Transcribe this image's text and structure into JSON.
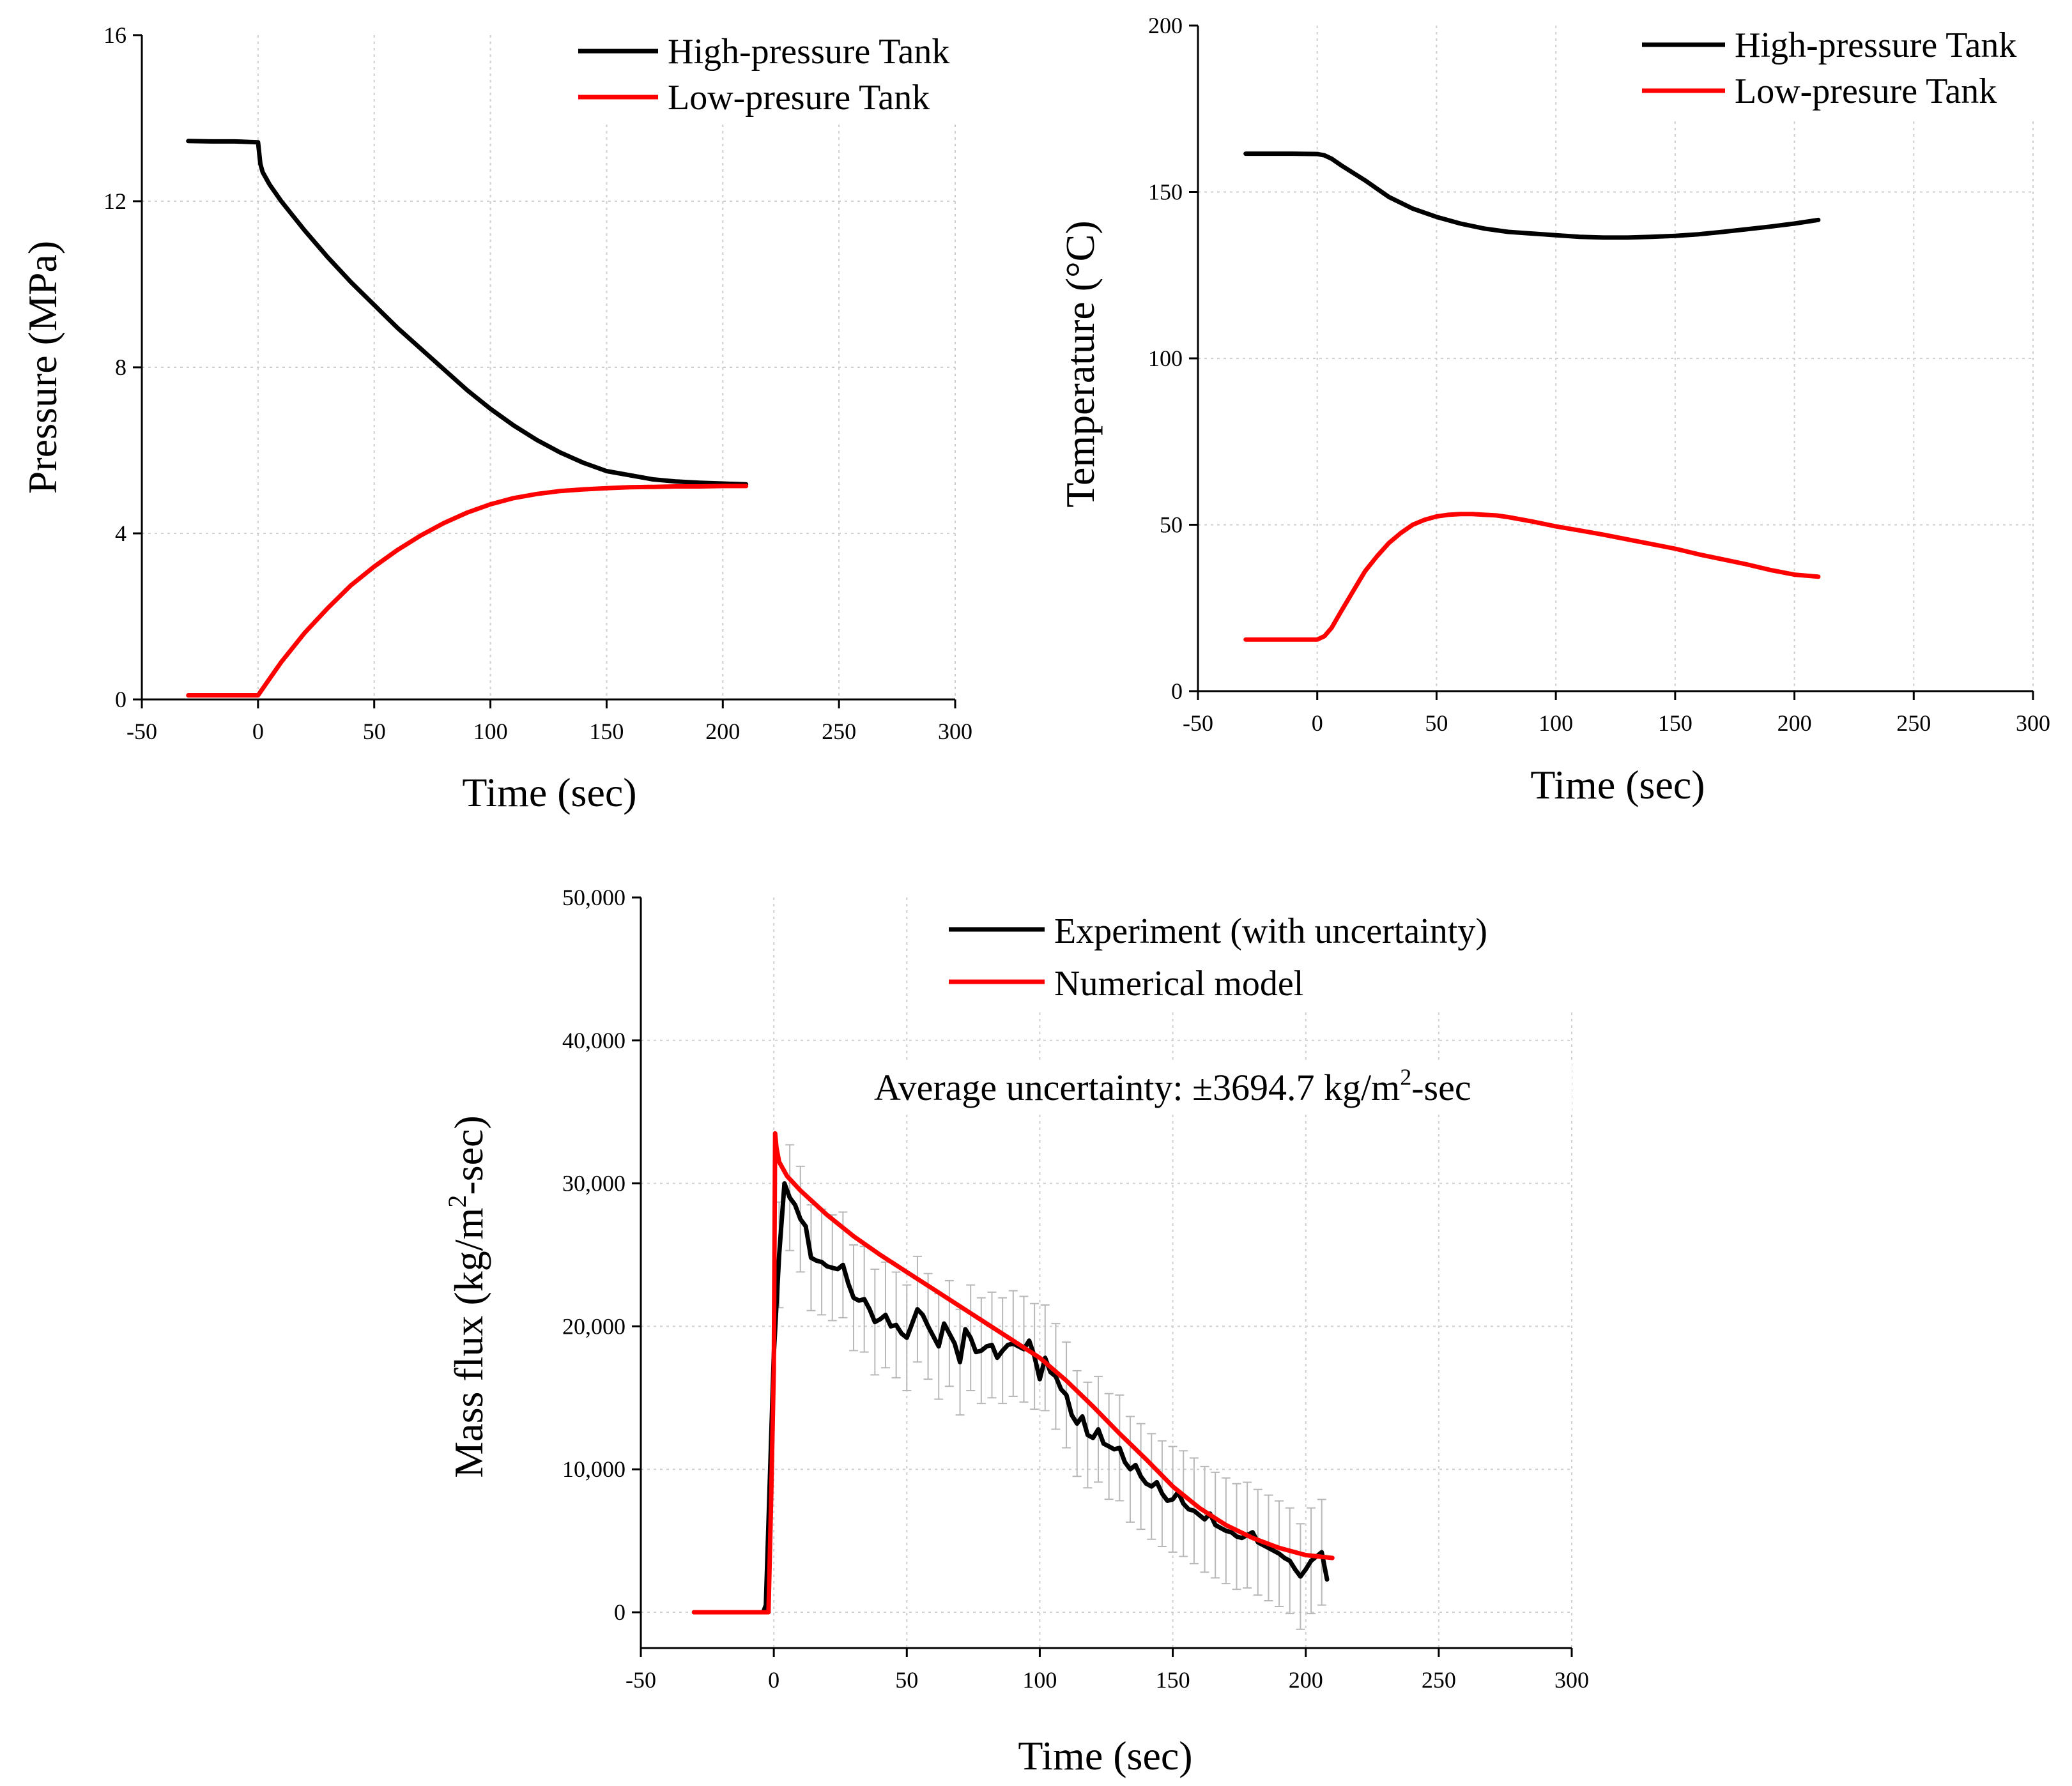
{
  "colors": {
    "high": "#000000",
    "low": "#ff0000",
    "errorbar": "#b8b8b8"
  },
  "chart_data": [
    {
      "id": "pressure",
      "type": "line",
      "xlabel": "Time (sec)",
      "ylabel": "Pressure (MPa)",
      "xlim": [
        -50,
        300
      ],
      "ylim": [
        0,
        16
      ],
      "xticks": [
        -50,
        0,
        50,
        100,
        150,
        200,
        250,
        300
      ],
      "xtick_labels": [
        "-50",
        "0",
        "50",
        "100",
        "150",
        "200",
        "250",
        "300"
      ],
      "yticks": [
        0,
        4,
        8,
        12,
        16
      ],
      "ytick_labels": [
        "0",
        "4",
        "8",
        "12",
        "16"
      ],
      "grid": true,
      "legend_position": "top-right",
      "series": [
        {
          "name": "High-pressure Tank",
          "color": "#000000",
          "x": [
            -30,
            -20,
            -10,
            0,
            1,
            2,
            5,
            10,
            20,
            30,
            40,
            50,
            60,
            70,
            80,
            90,
            100,
            110,
            120,
            130,
            140,
            150,
            160,
            170,
            180,
            190,
            200,
            210
          ],
          "y": [
            13.45,
            13.44,
            13.44,
            13.42,
            12.9,
            12.7,
            12.4,
            12.0,
            11.3,
            10.65,
            10.05,
            9.5,
            8.95,
            8.45,
            7.95,
            7.45,
            7.0,
            6.6,
            6.25,
            5.95,
            5.7,
            5.5,
            5.4,
            5.3,
            5.25,
            5.22,
            5.2,
            5.18
          ]
        },
        {
          "name": "Low-presure Tank",
          "color": "#ff0000",
          "x": [
            -30,
            -20,
            -10,
            0,
            5,
            10,
            20,
            30,
            40,
            50,
            60,
            70,
            80,
            90,
            100,
            110,
            120,
            130,
            140,
            150,
            160,
            170,
            180,
            190,
            200,
            210
          ],
          "y": [
            0.1,
            0.1,
            0.1,
            0.1,
            0.5,
            0.9,
            1.6,
            2.2,
            2.75,
            3.2,
            3.6,
            3.95,
            4.25,
            4.5,
            4.7,
            4.85,
            4.95,
            5.02,
            5.06,
            5.09,
            5.11,
            5.12,
            5.13,
            5.13,
            5.14,
            5.14
          ]
        }
      ]
    },
    {
      "id": "temperature",
      "type": "line",
      "xlabel": "Time (sec)",
      "ylabel": "Temperature (°C)",
      "xlim": [
        -50,
        300
      ],
      "ylim": [
        0,
        200
      ],
      "xticks": [
        -50,
        0,
        50,
        100,
        150,
        200,
        250,
        300
      ],
      "xtick_labels": [
        "-50",
        "0",
        "50",
        "100",
        "150",
        "200",
        "250",
        "300"
      ],
      "yticks": [
        0,
        50,
        100,
        150,
        200
      ],
      "ytick_labels": [
        "0",
        "50",
        "100",
        "150",
        "200"
      ],
      "grid": true,
      "legend_position": "top-right",
      "series": [
        {
          "name": "High-pressure Tank",
          "color": "#000000",
          "x": [
            -30,
            -20,
            -10,
            0,
            3,
            6,
            10,
            20,
            30,
            40,
            50,
            60,
            70,
            80,
            90,
            100,
            110,
            120,
            130,
            140,
            150,
            160,
            170,
            180,
            190,
            200,
            210
          ],
          "y": [
            161.5,
            161.5,
            161.5,
            161.4,
            161,
            160,
            158,
            153.5,
            148.5,
            145,
            142.5,
            140.5,
            139,
            138,
            137.5,
            137,
            136.5,
            136.3,
            136.3,
            136.5,
            136.8,
            137.3,
            138,
            138.8,
            139.6,
            140.5,
            141.6
          ]
        },
        {
          "name": "Low-presure Tank",
          "color": "#ff0000",
          "x": [
            -30,
            -20,
            -10,
            0,
            3,
            6,
            10,
            15,
            20,
            25,
            30,
            35,
            40,
            45,
            50,
            55,
            60,
            65,
            70,
            75,
            80,
            90,
            100,
            110,
            120,
            130,
            140,
            150,
            160,
            170,
            180,
            190,
            200,
            210
          ],
          "y": [
            15.5,
            15.5,
            15.5,
            15.5,
            16.5,
            19,
            24,
            30,
            36,
            40.5,
            44.5,
            47.5,
            50,
            51.5,
            52.5,
            53,
            53.2,
            53.2,
            53,
            52.8,
            52.3,
            51,
            49.5,
            48.3,
            47,
            45.6,
            44.2,
            42.8,
            41.1,
            39.6,
            38.1,
            36.4,
            35,
            34.4
          ]
        }
      ]
    },
    {
      "id": "massflux",
      "type": "line",
      "xlabel": "Time (sec)",
      "ylabel": "Mass flux (kg/m",
      "ylabel_superscript": "2",
      "ylabel_suffix": "-sec)",
      "xlim": [
        -50,
        300
      ],
      "ylim": [
        -2500,
        50000
      ],
      "xticks": [
        -50,
        0,
        50,
        100,
        150,
        200,
        250,
        300
      ],
      "xtick_labels": [
        "-50",
        "0",
        "50",
        "100",
        "150",
        "200",
        "250",
        "300"
      ],
      "yticks": [
        0,
        10000,
        20000,
        30000,
        40000,
        50000
      ],
      "ytick_labels": [
        "0",
        "10,000",
        "20,000",
        "30,000",
        "40,000",
        "50,000"
      ],
      "grid": true,
      "legend_position": "top-right",
      "annotation": {
        "text": "Average uncertainty: ±3694.7 kg/m",
        "superscript": "2",
        "suffix": "-sec"
      },
      "series": [
        {
          "name": "Experiment (with uncertainty)",
          "color": "#000000",
          "uncertainty": 3694.7,
          "x": [
            -30,
            -20,
            -10,
            -4,
            -3,
            0,
            2,
            4,
            6,
            8,
            10,
            12,
            14,
            16,
            18,
            20,
            22,
            24,
            26,
            28,
            30,
            32,
            34,
            36,
            38,
            40,
            42,
            44,
            46,
            48,
            50,
            52,
            54,
            56,
            58,
            60,
            62,
            64,
            66,
            68,
            70,
            72,
            74,
            76,
            78,
            80,
            82,
            84,
            86,
            88,
            90,
            92,
            94,
            96,
            98,
            100,
            102,
            104,
            106,
            108,
            110,
            112,
            114,
            116,
            118,
            120,
            122,
            124,
            126,
            128,
            130,
            132,
            134,
            136,
            138,
            140,
            142,
            144,
            146,
            148,
            150,
            152,
            154,
            156,
            158,
            160,
            162,
            164,
            166,
            168,
            170,
            172,
            174,
            176,
            178,
            180,
            182,
            184,
            186,
            188,
            190,
            192,
            194,
            196,
            198,
            200,
            202,
            204,
            206,
            208
          ],
          "y": [
            0,
            0,
            0,
            0,
            500,
            18000,
            25000,
            30000,
            29000,
            28500,
            27500,
            27000,
            24800,
            24600,
            24500,
            24200,
            24100,
            24000,
            24300,
            23000,
            22000,
            21800,
            21900,
            21200,
            20300,
            20500,
            20800,
            20000,
            20100,
            19500,
            19200,
            20200,
            21200,
            20800,
            20000,
            19300,
            18600,
            20200,
            19500,
            18800,
            17500,
            19800,
            19200,
            18200,
            18300,
            18600,
            18700,
            17800,
            18300,
            18700,
            18800,
            18600,
            18400,
            19000,
            17900,
            16300,
            17800,
            16800,
            16500,
            15600,
            15200,
            13800,
            13200,
            13700,
            12400,
            12200,
            12800,
            11800,
            11600,
            11400,
            11500,
            10500,
            10000,
            10300,
            9500,
            9000,
            8800,
            9100,
            8300,
            7800,
            7900,
            8400,
            7600,
            7200,
            7100,
            6800,
            6500,
            6900,
            6100,
            5900,
            5700,
            5600,
            5300,
            5200,
            5400,
            5600,
            4900,
            4700,
            4500,
            4300,
            4100,
            3800,
            3600,
            3000,
            2500,
            3000,
            3600,
            3900,
            4200,
            2300
          ]
        },
        {
          "name": "Numerical model",
          "color": "#ff0000",
          "x": [
            -30,
            -20,
            -10,
            -2,
            -1,
            0,
            0.5,
            1,
            2,
            5,
            10,
            20,
            30,
            40,
            50,
            60,
            70,
            80,
            90,
            100,
            110,
            120,
            130,
            140,
            150,
            160,
            170,
            180,
            190,
            200,
            210
          ],
          "y": [
            0,
            0,
            0,
            0,
            8000,
            17000,
            33500,
            32500,
            31500,
            30500,
            29500,
            27800,
            26300,
            25000,
            23800,
            22600,
            21400,
            20200,
            19000,
            17800,
            16200,
            14400,
            12500,
            10700,
            8800,
            7300,
            6100,
            5200,
            4500,
            4000,
            3800
          ]
        }
      ]
    }
  ]
}
